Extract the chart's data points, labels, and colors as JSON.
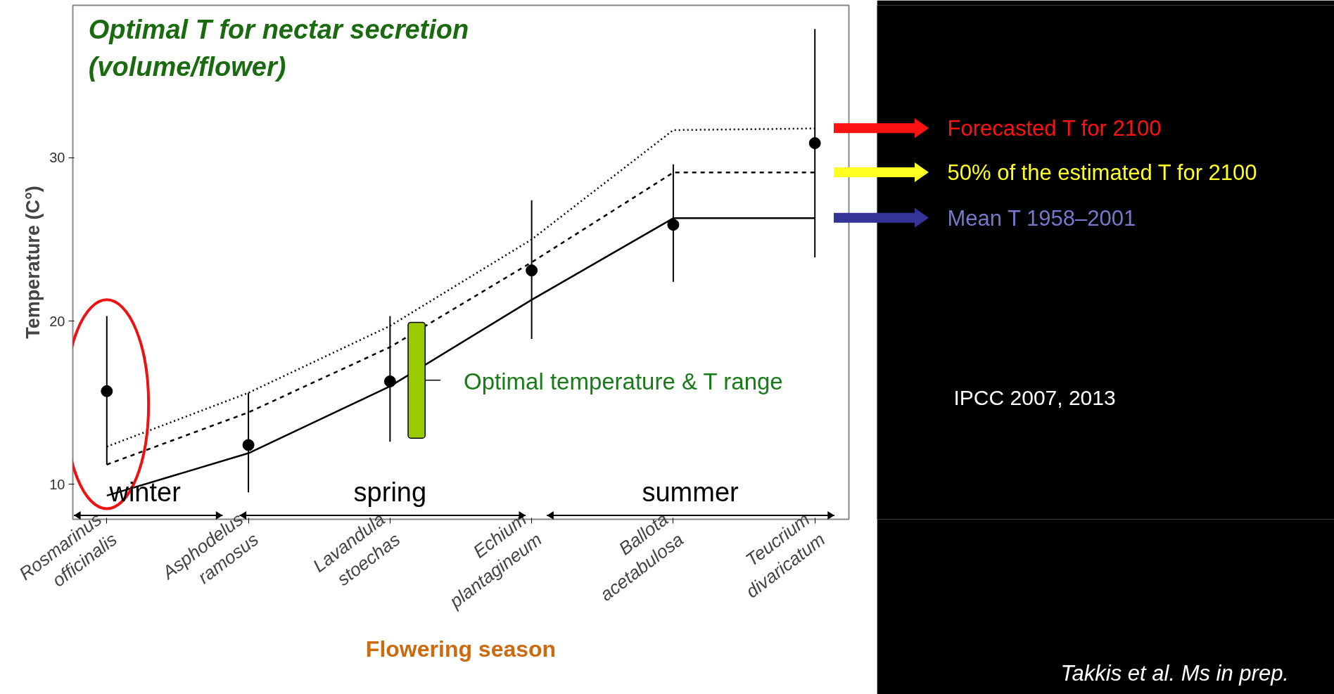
{
  "chart_data": {
    "type": "line",
    "title": "Optimal T for nectar secretion\n(volume/flower)",
    "ylabel": "Temperature (C°)",
    "xlabel": "Flowering season",
    "categories": [
      "Rosmarinus\nofficinalis",
      "Asphodelus\nramosus",
      "Lavandula\nstoechas",
      "Echium\nplantagineum",
      "Ballota\nacetabulosa",
      "Teucrium\ndivaricatum"
    ],
    "ylim": [
      7.85,
      39.35
    ],
    "yticks": [
      10,
      20,
      30
    ],
    "series": [
      {
        "name": "Forecasted T for 2100",
        "color": "#000000",
        "line_style": "dotted",
        "values": [
          12.3,
          15.6,
          19.7,
          25.0,
          31.7,
          31.8
        ]
      },
      {
        "name": "50% of the estimated T for 2100",
        "color": "#000000",
        "line_style": "dashed",
        "values": [
          11.2,
          14.4,
          18.4,
          23.6,
          29.1,
          29.1
        ]
      },
      {
        "name": "Mean T 1958–2001",
        "color": "#000000",
        "line_style": "solid",
        "values": [
          9.3,
          11.9,
          16.0,
          21.3,
          26.3,
          26.3
        ]
      },
      {
        "type": "scatter",
        "color": "#000000",
        "marker": "circle",
        "values": [
          15.7,
          12.4,
          16.3,
          23.1,
          25.9,
          30.9
        ],
        "errors": [
          [
            11.2,
            20.3
          ],
          [
            9.5,
            15.6
          ],
          [
            12.6,
            20.3
          ],
          [
            18.9,
            27.4
          ],
          [
            22.4,
            29.6
          ],
          [
            23.9,
            37.9
          ]
        ]
      }
    ],
    "annotations": [
      "winter",
      "spring",
      "summer",
      "Optimal temperature & T range",
      "IPCC 2007, 2013",
      "Takkis et al. Ms in prep."
    ]
  }
}
